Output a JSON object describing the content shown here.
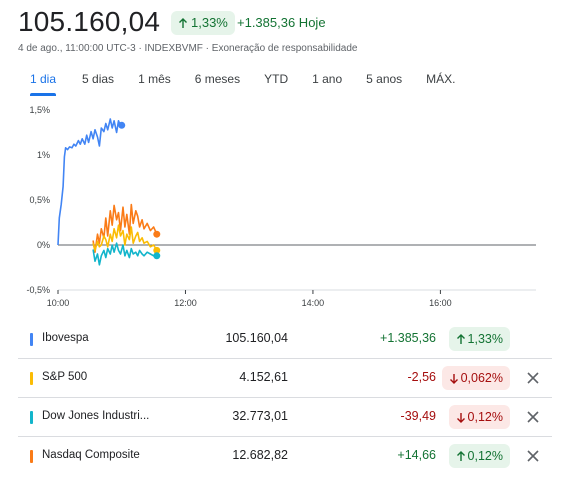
{
  "header": {
    "price": "105.160,04",
    "change_pct": "1,33%",
    "change_abs": "+1.385,36 Hoje",
    "subline": "4 de ago., 11:00:00 UTC-3 · INDEXBVMF · Exoneração de responsabilidade"
  },
  "tabs": [
    {
      "label": "1 dia",
      "active": true
    },
    {
      "label": "5 dias"
    },
    {
      "label": "1 mês"
    },
    {
      "label": "6 meses"
    },
    {
      "label": "YTD"
    },
    {
      "label": "1 ano"
    },
    {
      "label": "5 anos"
    },
    {
      "label": "MÁX."
    }
  ],
  "chart_data": {
    "type": "line",
    "ylabels": [
      "1,5%",
      "1%",
      "0,5%",
      "0%",
      "-0,5%"
    ],
    "xlabels": [
      "10:00",
      "12:00",
      "14:00",
      "16:00"
    ],
    "ylim": [
      -0.5,
      1.5
    ],
    "xlim": [
      10.0,
      17.5
    ],
    "series": [
      {
        "name": "Ibovespa",
        "color": "#4285f4",
        "x": [
          10.0,
          10.02,
          10.05,
          10.08,
          10.1,
          10.12,
          10.15,
          10.18,
          10.22,
          10.25,
          10.28,
          10.32,
          10.35,
          10.38,
          10.42,
          10.45,
          10.48,
          10.52,
          10.55,
          10.58,
          10.62,
          10.65,
          10.68,
          10.72,
          10.75,
          10.78,
          10.82,
          10.85,
          10.88,
          10.92,
          10.95,
          10.98,
          11.0
        ],
        "y": [
          0.0,
          0.3,
          0.45,
          0.65,
          0.98,
          1.08,
          1.06,
          1.09,
          1.08,
          1.12,
          1.1,
          1.16,
          1.12,
          1.18,
          1.12,
          1.22,
          1.14,
          1.26,
          1.18,
          1.28,
          1.2,
          1.1,
          1.3,
          1.26,
          1.35,
          1.28,
          1.4,
          1.3,
          1.38,
          1.25,
          1.38,
          1.32,
          1.33
        ]
      },
      {
        "name": "S&P 500",
        "color": "#fbbc04",
        "x": [
          10.55,
          10.58,
          10.62,
          10.65,
          10.68,
          10.72,
          10.75,
          10.78,
          10.82,
          10.85,
          10.88,
          10.92,
          10.95,
          10.98,
          11.02,
          11.05,
          11.08,
          11.12,
          11.15,
          11.18,
          11.22,
          11.25,
          11.28,
          11.32,
          11.35,
          11.4,
          11.45,
          11.5,
          11.55
        ],
        "y": [
          0.02,
          -0.06,
          0.04,
          -0.02,
          0.0,
          0.1,
          0.06,
          -0.02,
          0.12,
          0.04,
          0.18,
          0.08,
          0.22,
          0.1,
          0.16,
          0.0,
          0.12,
          0.06,
          0.2,
          0.02,
          0.1,
          0.14,
          0.04,
          0.08,
          0.02,
          0.04,
          -0.02,
          0.0,
          -0.06
        ]
      },
      {
        "name": "Dow Jones Industrial Average",
        "color": "#12b5cb",
        "x": [
          10.55,
          10.58,
          10.62,
          10.65,
          10.68,
          10.72,
          10.75,
          10.78,
          10.82,
          10.85,
          10.88,
          10.92,
          10.95,
          10.98,
          11.02,
          11.05,
          11.08,
          11.12,
          11.15,
          11.18,
          11.22,
          11.25,
          11.28,
          11.32,
          11.35,
          11.4,
          11.45,
          11.5,
          11.55
        ],
        "y": [
          -0.05,
          -0.18,
          -0.1,
          -0.22,
          -0.12,
          -0.06,
          -0.14,
          -0.04,
          -0.1,
          0.0,
          -0.08,
          0.02,
          -0.06,
          -0.1,
          0.0,
          -0.12,
          -0.06,
          -0.14,
          -0.04,
          -0.1,
          -0.08,
          -0.12,
          -0.06,
          -0.1,
          -0.12,
          -0.08,
          -0.1,
          -0.12,
          -0.12
        ]
      },
      {
        "name": "Nasdaq Composite",
        "color": "#fa7b17",
        "x": [
          10.55,
          10.58,
          10.62,
          10.65,
          10.68,
          10.72,
          10.75,
          10.78,
          10.82,
          10.85,
          10.88,
          10.92,
          10.95,
          10.98,
          11.02,
          11.05,
          11.08,
          11.12,
          11.15,
          11.18,
          11.22,
          11.25,
          11.28,
          11.32,
          11.35,
          11.4,
          11.45,
          11.5,
          11.55
        ],
        "y": [
          0.05,
          -0.08,
          0.12,
          0.02,
          0.18,
          0.08,
          0.3,
          0.1,
          0.38,
          0.22,
          0.44,
          0.28,
          0.36,
          0.16,
          0.42,
          0.2,
          0.34,
          0.12,
          0.45,
          0.24,
          0.38,
          0.32,
          0.2,
          0.28,
          0.18,
          0.24,
          0.16,
          0.2,
          0.12
        ]
      }
    ]
  },
  "comparison": [
    {
      "name": "Ibovespa",
      "color": "#4285f4",
      "value": "105.160,04",
      "delta": "+1.385,36",
      "pct": "1,33%",
      "dir": "up",
      "removable": false
    },
    {
      "name": "S&P 500",
      "color": "#fbbc04",
      "value": "4.152,61",
      "delta": "-2,56",
      "pct": "0,062%",
      "dir": "down",
      "removable": true
    },
    {
      "name": "Dow Jones Industri...",
      "color": "#12b5cb",
      "value": "32.773,01",
      "delta": "-39,49",
      "pct": "0,12%",
      "dir": "down",
      "removable": true
    },
    {
      "name": "Nasdaq Composite",
      "color": "#fa7b17",
      "value": "12.682,82",
      "delta": "+14,66",
      "pct": "0,12%",
      "dir": "up",
      "removable": true
    }
  ]
}
